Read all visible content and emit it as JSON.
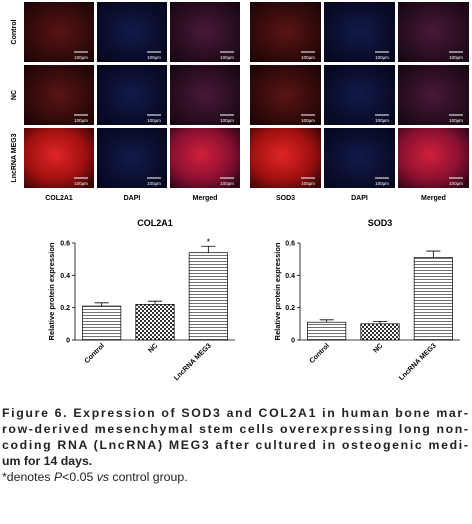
{
  "micrographs": {
    "rows": [
      "Control",
      "NC",
      "LncRNA MEG3"
    ],
    "left_columns": [
      "COL2A1",
      "DAPI",
      "Merged"
    ],
    "right_columns": [
      "SOD3",
      "DAPI",
      "Merged"
    ],
    "scale_bar": "100μm"
  },
  "chart_data": [
    {
      "type": "bar",
      "title": "COL2A1",
      "y_label": "Relative protein expression",
      "categories": [
        "Control",
        "NC",
        "LncRNA MEG3"
      ],
      "values": [
        0.21,
        0.22,
        0.54
      ],
      "errors": [
        0.02,
        0.02,
        0.04
      ],
      "patterns": [
        "lines",
        "checks",
        "lines"
      ],
      "annotations": [
        {
          "category": "LncRNA MEG3",
          "text": "*"
        }
      ],
      "ylim": [
        0,
        0.6
      ],
      "yticks": [
        0,
        0.2,
        0.4,
        0.6
      ]
    },
    {
      "type": "bar",
      "title": "SOD3",
      "y_label": "Relative protein expression",
      "categories": [
        "Control",
        "NC",
        "LncRNA MEG3"
      ],
      "values": [
        0.11,
        0.1,
        0.51
      ],
      "errors": [
        0.015,
        0.015,
        0.04
      ],
      "patterns": [
        "lines",
        "checks",
        "lines"
      ],
      "ylim": [
        0,
        0.6
      ],
      "yticks": [
        0,
        0.2,
        0.4,
        0.6
      ]
    }
  ],
  "caption": {
    "lines": [
      "Figure 6. Expression of SOD3 and COL2A1 in human bone mar-",
      "row-derived mesenchymal stem cells overexpressing long non-",
      "coding RNA (LncRNA) MEG3 after cultured in osteogenic medi-",
      "um for 14 days."
    ],
    "note": [
      "*denotes ",
      "P",
      "<0.05 ",
      "vs",
      " control group."
    ]
  }
}
